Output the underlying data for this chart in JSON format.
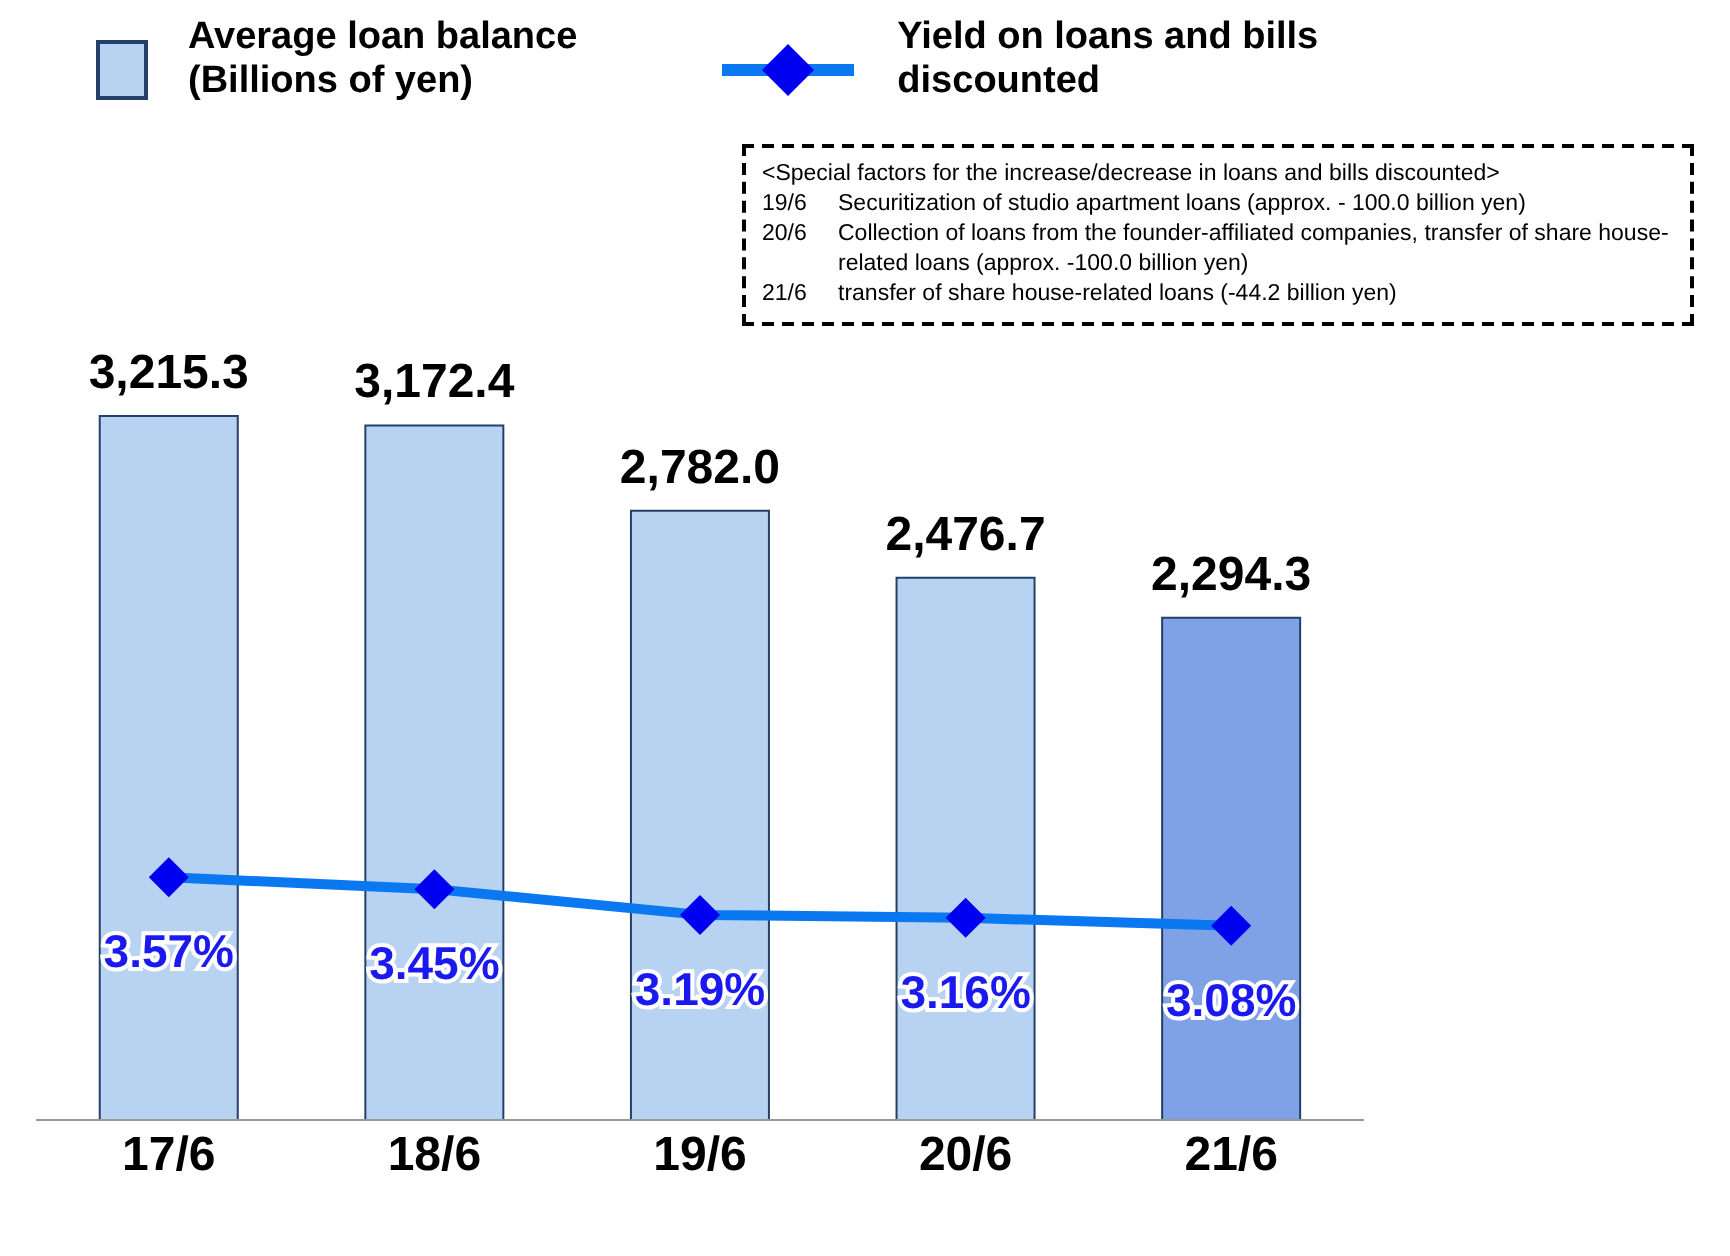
{
  "chart_data": {
    "type": "bar",
    "categories": [
      "17/6",
      "18/6",
      "19/6",
      "20/6",
      "21/6"
    ],
    "series": [
      {
        "name": "Average loan balance\n(Billions of yen)",
        "color": "#b8d2f2",
        "colors": [
          "#b8d2f2",
          "#b8d2f2",
          "#b8d2f2",
          "#b8d2f2",
          "#7fa2e6"
        ],
        "values": [
          3215.3,
          3172.4,
          2782.0,
          2476.7,
          2294.3
        ],
        "value_labels": [
          "3,215.3",
          "3,172.4",
          "2,782.0",
          "2,476.7",
          "2,294.3"
        ]
      },
      {
        "name": "Yield on loans and bills\ndiscounted",
        "type": "line",
        "axis": "y2",
        "color": "#0a78f0",
        "values": [
          3.57,
          3.45,
          3.19,
          3.16,
          3.08
        ],
        "value_labels": [
          "3.57%",
          "3.45%",
          "3.19%",
          "3.16%",
          "3.08%"
        ]
      }
    ],
    "marker": "diamond",
    "legend": "top left",
    "tick_labels": "x",
    "annotations": [
      "<Special factors for the increase/decrease in loans and bills discounted>",
      "19/6\tSecuritization of studio apartment loans (approx. - 100.0 billion yen)",
      "20/6\tCollection of loans from the founder-affiliated companies, transfer of share house-related loans (approx. -100.0 billion yen)",
      "21/6\ttransfer of share house-related loans (-44.2 billion yen)"
    ]
  }
}
